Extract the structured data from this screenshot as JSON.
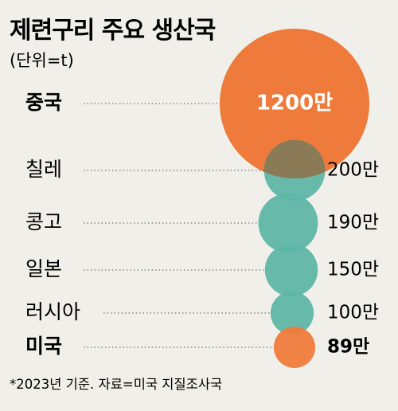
{
  "header": {
    "title": "제련구리 주요 생산국",
    "unit": "(단위=t)"
  },
  "footnote": "*2023년 기준. 자료=미국 지질조사국",
  "colors": {
    "background": "#f0efe9",
    "highlight": "#ee7b3b",
    "default": "#5fb6a6"
  },
  "chart_data": {
    "type": "bubble",
    "categories": [
      "중국",
      "칠레",
      "콩고",
      "일본",
      "러시아",
      "미국"
    ],
    "values": [
      12000000,
      2000000,
      1900000,
      1500000,
      1000000,
      890000
    ],
    "value_labels": [
      "1200만",
      "200만",
      "190만",
      "150만",
      "100만",
      "89만"
    ],
    "highlighted": [
      "중국",
      "미국"
    ]
  }
}
